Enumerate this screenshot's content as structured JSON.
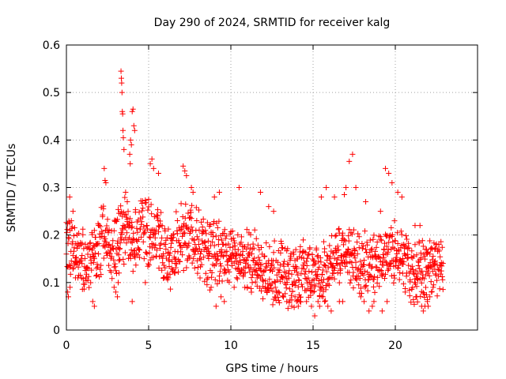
{
  "chart_data": {
    "type": "scatter",
    "title": "Day 290 of 2024, SRMTID for receiver kalg",
    "xlabel": "GPS time / hours",
    "ylabel": "SRMTID / TECUs",
    "xlim": [
      0,
      25
    ],
    "ylim": [
      0,
      0.6
    ],
    "x_ticks": [
      0,
      5,
      10,
      15,
      20
    ],
    "x_tick_labels": [
      "0",
      "5",
      "10",
      "15",
      "20"
    ],
    "y_ticks": [
      0,
      0.1,
      0.2,
      0.3,
      0.4,
      0.5,
      0.6
    ],
    "y_tick_labels": [
      "0",
      "0.1",
      "0.2",
      "0.3",
      "0.4",
      "0.5",
      "0.6"
    ],
    "grid": true,
    "marker": "+",
    "series": [
      {
        "name": "SRMTID",
        "color": "#ff0000",
        "x": [
          0.0,
          0.1,
          0.2,
          0.3,
          0.4,
          0.5,
          0.6,
          0.7,
          0.8,
          0.9,
          1.0,
          1.1,
          1.2,
          1.3,
          1.4,
          1.5,
          1.6,
          1.7,
          1.8,
          1.9,
          2.0,
          2.1,
          2.2,
          2.3,
          2.4,
          2.5,
          2.6,
          2.7,
          2.8,
          2.9,
          3.0,
          3.1,
          3.2,
          3.3,
          3.4,
          3.5,
          3.6,
          3.7,
          3.8,
          3.9,
          4.0,
          4.1,
          4.2,
          4.3,
          4.4,
          4.5,
          4.6,
          4.7,
          4.8,
          4.9,
          5.0,
          5.1,
          5.2,
          5.3,
          5.4,
          5.5,
          5.6,
          5.7,
          5.8,
          5.9,
          6.0,
          6.1,
          6.2,
          6.3,
          6.4,
          6.5,
          6.6,
          6.7,
          6.8,
          6.9,
          7.0,
          7.1,
          7.2,
          7.3,
          7.4,
          7.5,
          7.6,
          7.7,
          7.8,
          7.9,
          8.0,
          8.1,
          8.2,
          8.3,
          8.4,
          8.5,
          8.6,
          8.7,
          8.8,
          8.9,
          9.0,
          9.1,
          9.2,
          9.3,
          9.4,
          9.5,
          9.6,
          9.7,
          9.8,
          9.9,
          10.0,
          10.1,
          10.2,
          10.3,
          10.4,
          10.5,
          10.6,
          10.7,
          10.8,
          10.9,
          11.0,
          11.1,
          11.2,
          11.3,
          11.4,
          11.5,
          11.6,
          11.7,
          11.8,
          11.9,
          12.0,
          12.1,
          12.2,
          12.3,
          12.4,
          12.5,
          12.6,
          12.7,
          12.8,
          12.9,
          13.0,
          13.1,
          13.2,
          13.3,
          13.4,
          13.5,
          13.6,
          13.7,
          13.8,
          13.9,
          14.0,
          14.1,
          14.2,
          14.3,
          14.4,
          14.5,
          14.6,
          14.7,
          14.8,
          14.9,
          15.0,
          15.1,
          15.2,
          15.3,
          15.4,
          15.5,
          15.6,
          15.7,
          15.8,
          15.9,
          16.0,
          16.1,
          16.2,
          16.3,
          16.4,
          16.5,
          16.6,
          16.7,
          16.8,
          16.9,
          17.0,
          17.1,
          17.2,
          17.3,
          17.4,
          17.5,
          17.6,
          17.7,
          17.8,
          17.9,
          18.0,
          18.1,
          18.2,
          18.3,
          18.4,
          18.5,
          18.6,
          18.7,
          18.8,
          18.9,
          19.0,
          19.1,
          19.2,
          19.3,
          19.4,
          19.5,
          19.6,
          19.7,
          19.8,
          19.9,
          20.0,
          20.1,
          20.2,
          20.3,
          20.4,
          20.5,
          20.6,
          20.7,
          20.8,
          20.9,
          21.0,
          21.1,
          21.2,
          21.3,
          21.4,
          21.5,
          21.6,
          21.7,
          21.8,
          21.9,
          22.0,
          22.1,
          22.2,
          22.3,
          22.4,
          22.5,
          22.6,
          22.7,
          22.8,
          22.9,
          0.05,
          0.15,
          0.25,
          0.35,
          0.45,
          0.55,
          0.65,
          0.75,
          0.85,
          0.95,
          1.05,
          1.15,
          1.25,
          1.35,
          1.45,
          1.55,
          1.65,
          1.75,
          1.85,
          1.95,
          2.05,
          2.15,
          2.25,
          2.35,
          2.45,
          2.55,
          2.65,
          2.75,
          2.85,
          2.95,
          3.05,
          3.15,
          3.25,
          3.35,
          3.45,
          3.55,
          3.65,
          3.75,
          3.85,
          3.95,
          4.05,
          4.15,
          4.25,
          4.35,
          4.45,
          4.55,
          4.65,
          4.75,
          4.85,
          4.95,
          5.05,
          5.15,
          5.25,
          5.35,
          5.45,
          5.55,
          5.65,
          5.75,
          5.85,
          5.95,
          6.05,
          6.15,
          6.25,
          6.35,
          6.45,
          6.55,
          6.65,
          6.75,
          6.85,
          6.95,
          7.05,
          7.15,
          7.25,
          7.35,
          7.45,
          7.55,
          7.65,
          7.75,
          7.85,
          7.95,
          8.05,
          8.15,
          8.25,
          8.35,
          8.45,
          8.55,
          8.65,
          8.75,
          8.85,
          8.95,
          9.05,
          9.15,
          9.25,
          9.35,
          9.45,
          9.55,
          9.65,
          9.75,
          9.85,
          9.95,
          10.05,
          10.15,
          10.25,
          10.35,
          10.45,
          10.55,
          10.65,
          10.75,
          10.85,
          10.95,
          11.05,
          11.15,
          11.25,
          11.35,
          11.45,
          11.55,
          11.65,
          11.75,
          11.85,
          11.95,
          12.05,
          12.15,
          12.25,
          12.35,
          12.45,
          12.55,
          12.65,
          12.75,
          12.85,
          12.95,
          13.05,
          13.15,
          13.25,
          13.35,
          13.45,
          13.55,
          13.65,
          13.75,
          13.85,
          13.95,
          14.05,
          14.15,
          14.25,
          14.35,
          14.45,
          14.55,
          14.65,
          14.75,
          14.85,
          14.95,
          15.05,
          15.15,
          15.25,
          15.35,
          15.45,
          15.55,
          15.65,
          15.75,
          15.85,
          15.95,
          16.05,
          16.15,
          16.25,
          16.35,
          16.45,
          16.55,
          16.65,
          16.75,
          16.85,
          16.95,
          17.05,
          17.15,
          17.25,
          17.35,
          17.45,
          17.55,
          17.65,
          17.75,
          17.85,
          17.95,
          18.05,
          18.15,
          18.25,
          18.35,
          18.45,
          18.55,
          18.65,
          18.75,
          18.85,
          18.95,
          19.05,
          19.15,
          19.25,
          19.35,
          19.45,
          19.55,
          19.65,
          19.75,
          19.85,
          19.95,
          20.05,
          20.15,
          20.25,
          20.35,
          20.45,
          20.55,
          20.65,
          20.75,
          20.85,
          20.95,
          21.05,
          21.15,
          21.25,
          21.35,
          21.45,
          21.55,
          21.65,
          21.75,
          21.85,
          21.95,
          22.05,
          22.15,
          22.25,
          22.35,
          22.45,
          22.55,
          22.65,
          22.75,
          22.85,
          3.3,
          3.32,
          3.34,
          3.36,
          3.38,
          3.4,
          3.42,
          3.44,
          3.46,
          3.5,
          3.9,
          3.95,
          4.0,
          4.05,
          4.1,
          4.15,
          3.85,
          3.88,
          2.3,
          2.35,
          2.4,
          5.1,
          5.2,
          5.3,
          5.6,
          7.1,
          7.2,
          7.3,
          7.6,
          7.7,
          9.0,
          9.3,
          10.5,
          11.8,
          12.3,
          12.6,
          15.5,
          15.8,
          16.3,
          16.9,
          17.2,
          17.4,
          17.6,
          17.0,
          18.2,
          19.1,
          19.4,
          19.6,
          19.8,
          19.95,
          20.15,
          20.4,
          21.2,
          21.5,
          21.9,
          22.4,
          0.2,
          0.4,
          3.6,
          3.7,
          0.08,
          0.12,
          0.22,
          0.55,
          0.7,
          0.95,
          1.6,
          1.7,
          2.9,
          3.0,
          3.1,
          3.15,
          3.2,
          4.0,
          4.8,
          5.9,
          6.2,
          6.4,
          6.6,
          8.6,
          8.8,
          9.1,
          9.4,
          9.6,
          10.2,
          10.8,
          11.3,
          11.6,
          12.1,
          12.2,
          12.9,
          13.2,
          13.4,
          13.7,
          13.9,
          14.0,
          14.1,
          14.2,
          14.6,
          14.9,
          15.1,
          15.3,
          15.4,
          15.6,
          15.7,
          15.9,
          16.1,
          16.6,
          16.8,
          17.9,
          18.1,
          18.4,
          18.6,
          18.7,
          19.2,
          19.5,
          20.6,
          21.3,
          21.6,
          21.7,
          21.8,
          21.95,
          22.0,
          22.1,
          22.2,
          22.3
        ]
      }
    ]
  }
}
